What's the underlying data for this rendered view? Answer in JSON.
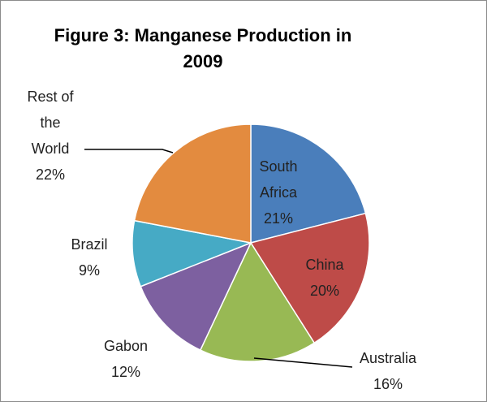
{
  "chart_data": {
    "type": "pie",
    "title": "Figure 3: Manganese Production in 2009",
    "categories": [
      "South Africa",
      "China",
      "Australia",
      "Gabon",
      "Brazil",
      "Rest of the World"
    ],
    "values": [
      21,
      20,
      16,
      12,
      9,
      22
    ],
    "value_labels": [
      "21%",
      "20%",
      "16%",
      "12%",
      "9%",
      "22%"
    ],
    "colors": [
      "#4a7ebb",
      "#be4b48",
      "#98b954",
      "#7d60a0",
      "#46aac5",
      "#e38b3f"
    ]
  }
}
